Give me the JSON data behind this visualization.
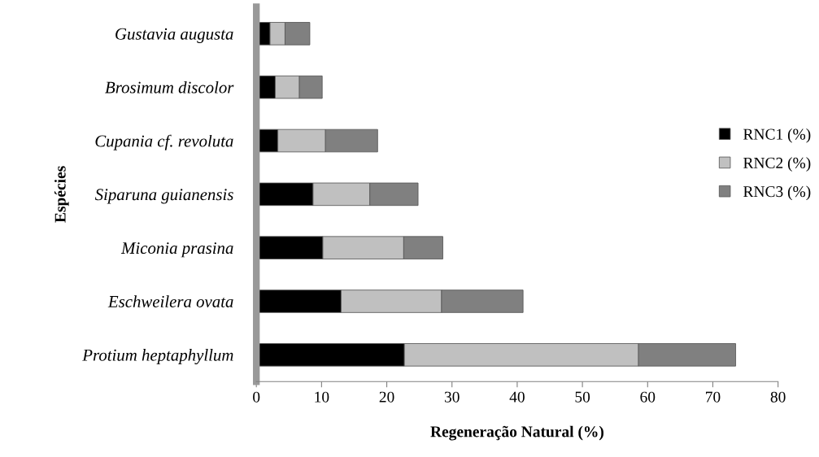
{
  "chart_data": {
    "type": "bar",
    "orientation": "horizontal",
    "stacked": true,
    "categories": [
      "Gustavia augusta",
      "Brosimum discolor",
      "Cupania cf. revoluta",
      "Siparuna guianensis",
      "Miconia prasina",
      "Eschweilera ovata",
      "Protium heptaphyllum"
    ],
    "series": [
      {
        "name": "RNC1 (%)",
        "color": "#000000",
        "values": [
          2.1,
          2.9,
          3.3,
          8.7,
          10.2,
          13.0,
          22.7
        ]
      },
      {
        "name": "RNC2 (%)",
        "color": "#c0c0c0",
        "values": [
          2.3,
          3.7,
          7.3,
          8.7,
          12.4,
          15.4,
          35.9
        ]
      },
      {
        "name": "RNC3 (%)",
        "color": "#808080",
        "values": [
          3.8,
          3.5,
          8.0,
          7.4,
          6.0,
          12.5,
          14.9
        ]
      }
    ],
    "xlabel": "Regeneração Natural (%)",
    "ylabel": "Espécies",
    "xlim": [
      0,
      80
    ],
    "xticks": [
      0,
      10,
      20,
      30,
      40,
      50,
      60,
      70,
      80
    ],
    "grid": false,
    "legend": "right"
  }
}
